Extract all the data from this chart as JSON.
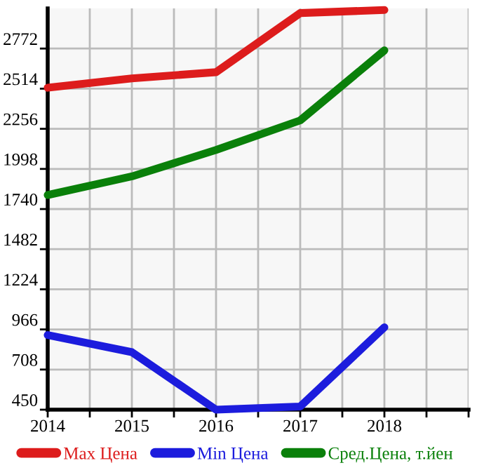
{
  "chart_data": {
    "type": "line",
    "x": [
      2014,
      2015,
      2016,
      2017,
      2018
    ],
    "series": [
      {
        "name": "Max Цена",
        "color": "#dd1c1c",
        "values": [
          2520,
          2580,
          2620,
          3000,
          3020
        ]
      },
      {
        "name": "Min Цена",
        "color": "#1c1cdd",
        "values": [
          930,
          820,
          450,
          470,
          980
        ]
      },
      {
        "name": "Сред.Цена, т.йен",
        "color": "#0a800a",
        "values": [
          1830,
          1950,
          2120,
          2310,
          2760
        ]
      }
    ],
    "xlim": [
      2014,
      2019
    ],
    "xticks": [
      2014,
      {
        "value": 2014.5,
        "label": null
      },
      2015,
      {
        "value": 2015.5,
        "label": null
      },
      2016,
      {
        "value": 2016.5,
        "label": null
      },
      2017,
      {
        "value": 2017.5,
        "label": null
      },
      2018,
      {
        "value": 2018.5,
        "label": null
      },
      {
        "value": 2019,
        "label": null
      }
    ],
    "ylim": [
      450,
      3030
    ],
    "yticks": [
      450,
      708,
      966,
      1224,
      1482,
      1740,
      1998,
      2256,
      2514,
      2772
    ],
    "grid": true,
    "legend": "bottom",
    "marker": "none",
    "line_style": "solid"
  }
}
